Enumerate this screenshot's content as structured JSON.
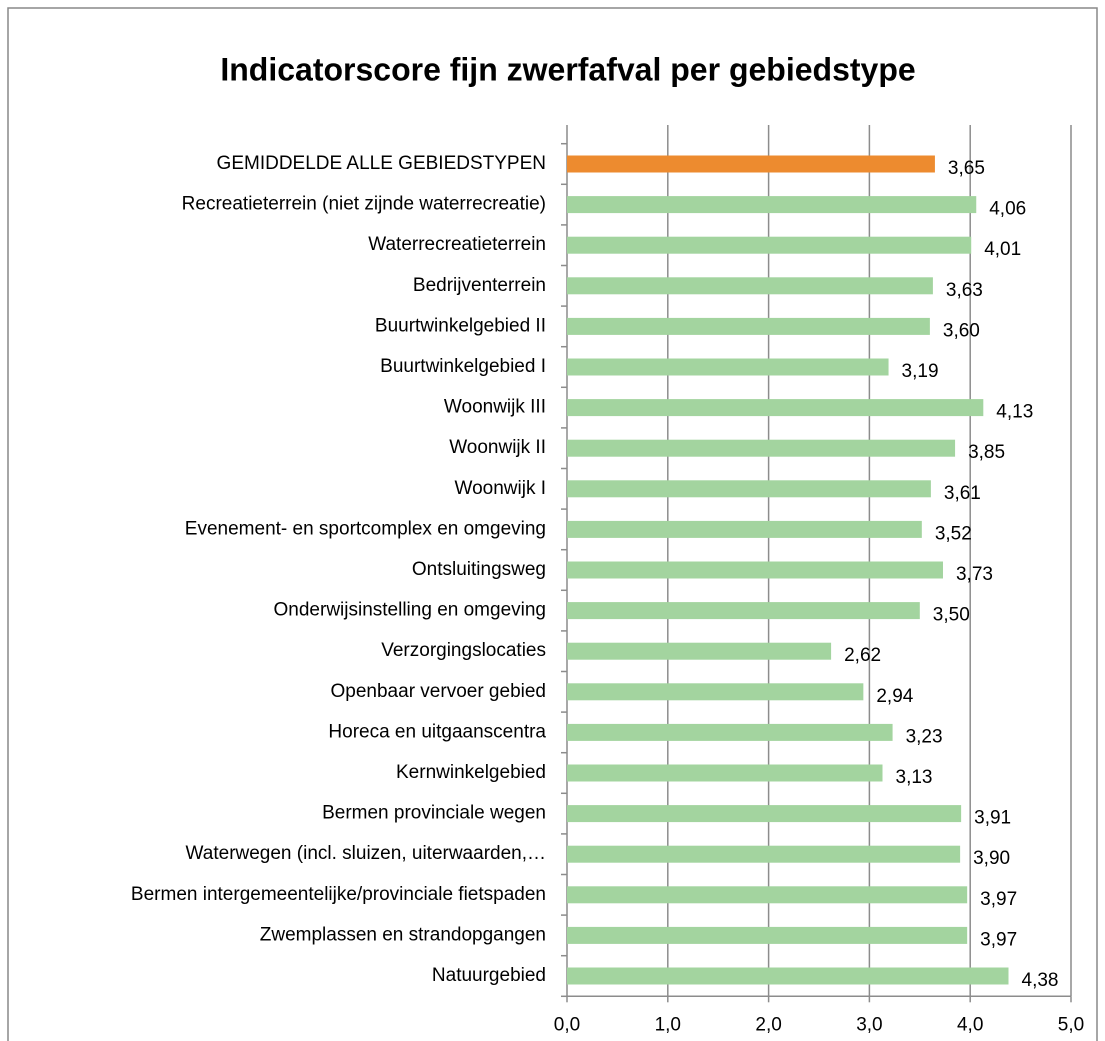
{
  "chart_data": {
    "type": "barh",
    "title": "Indicatorscore fijn zwerfafval per gebiedstype",
    "categories": [
      "GEMIDDELDE ALLE GEBIEDSTYPEN",
      "Recreatieterrein (niet zijnde waterrecreatie)",
      "Waterrecreatieterrein",
      "Bedrijventerrein",
      "Buurtwinkelgebied II",
      "Buurtwinkelgebied I",
      "Woonwijk III",
      "Woonwijk II",
      "Woonwijk I",
      "Evenement- en sportcomplex en omgeving",
      "Ontsluitingsweg",
      "Onderwijsinstelling en omgeving",
      "Verzorgingslocaties",
      "Openbaar vervoer gebied",
      "Horeca en uitgaanscentra",
      "Kernwinkelgebied",
      "Bermen provinciale wegen",
      "Waterwegen (incl. sluizen, uiterwaarden,…",
      "Bermen intergemeentelijke/provinciale fietspaden",
      "Zwemplassen en strandopgangen",
      "Natuurgebied"
    ],
    "values": [
      3.65,
      4.06,
      4.01,
      3.63,
      3.6,
      3.19,
      4.13,
      3.85,
      3.61,
      3.52,
      3.73,
      3.5,
      2.62,
      2.94,
      3.23,
      3.13,
      3.91,
      3.9,
      3.97,
      3.97,
      4.38
    ],
    "value_labels": [
      "3,65",
      "4,06",
      "4,01",
      "3,63",
      "3,60",
      "3,19",
      "4,13",
      "3,85",
      "3,61",
      "3,52",
      "3,73",
      "3,50",
      "2,62",
      "2,94",
      "3,23",
      "3,13",
      "3,91",
      "3,90",
      "3,97",
      "3,97",
      "4,38"
    ],
    "colors": [
      "#ed8b2f",
      "#a3d49f",
      "#a3d49f",
      "#a3d49f",
      "#a3d49f",
      "#a3d49f",
      "#a3d49f",
      "#a3d49f",
      "#a3d49f",
      "#a3d49f",
      "#a3d49f",
      "#a3d49f",
      "#a3d49f",
      "#a3d49f",
      "#a3d49f",
      "#a3d49f",
      "#a3d49f",
      "#a3d49f",
      "#a3d49f",
      "#a3d49f",
      "#a3d49f"
    ],
    "xlim": [
      0,
      5
    ],
    "xticks": [
      {
        "value": 0,
        "label": "0,0"
      },
      {
        "value": 1,
        "label": "1,0"
      },
      {
        "value": 2,
        "label": "2,0"
      },
      {
        "value": 3,
        "label": "3,0"
      },
      {
        "value": 4,
        "label": "4,0"
      },
      {
        "value": 5,
        "label": "5,0"
      }
    ],
    "grid": true
  }
}
